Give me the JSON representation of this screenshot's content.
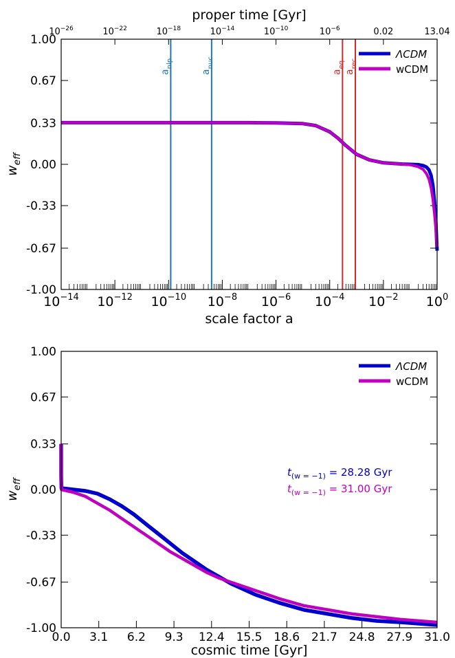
{
  "chart_data": [
    {
      "type": "line",
      "xlabel": "scale factor a",
      "ylabel": "w",
      "ylabel_sub": "eff",
      "x_scale": "log",
      "xlim": [
        1e-14,
        1
      ],
      "ylim": [
        -1.0,
        1.0
      ],
      "x_ticks": [
        {
          "base": "10",
          "exp": "−14"
        },
        {
          "base": "10",
          "exp": "−12"
        },
        {
          "base": "10",
          "exp": "−10"
        },
        {
          "base": "10",
          "exp": "−8"
        },
        {
          "base": "10",
          "exp": "−6"
        },
        {
          "base": "10",
          "exp": "−4"
        },
        {
          "base": "10",
          "exp": "−2"
        },
        {
          "base": "10",
          "exp": "0"
        }
      ],
      "y_ticks": [
        "1.00",
        "0.67",
        "0.33",
        "0.00",
        "-0.33",
        "-0.67",
        "-1.00"
      ],
      "y_tick_values": [
        1.0,
        0.67,
        0.33,
        0.0,
        -0.33,
        -0.67,
        -1.0
      ],
      "top_axis": {
        "label": "proper time [Gyr]",
        "ticks": [
          {
            "a": 1e-14,
            "base": "10",
            "exp": "−26"
          },
          {
            "a": 1e-12,
            "base": "10",
            "exp": "−22"
          },
          {
            "a": 1e-10,
            "base": "10",
            "exp": "−18"
          },
          {
            "a": 1e-08,
            "base": "10",
            "exp": "−14"
          },
          {
            "a": 1e-06,
            "base": "10",
            "exp": "−10"
          },
          {
            "a": 0.0001,
            "base": "10",
            "exp": "−6"
          },
          {
            "a": 0.01,
            "text": "0.02"
          },
          {
            "a": 1,
            "text": "13.04"
          }
        ]
      },
      "vertical_lines": [
        {
          "a": 1.2e-10,
          "label": "a",
          "sub": "nlp",
          "color": "#1f77b4"
        },
        {
          "a": 4e-09,
          "label": "a",
          "sub": "nuc",
          "color": "#1f77b4"
        },
        {
          "a": 0.0003,
          "label": "a",
          "sub": "eq",
          "color": "#d62728"
        },
        {
          "a": 0.0009,
          "label": "a",
          "sub": "rec",
          "color": "#d62728"
        }
      ],
      "series": [
        {
          "name": "ΛCDM",
          "color": "#0000cc",
          "x": [
            1e-14,
            1e-07,
            1e-06,
            1e-05,
            3e-05,
            0.0001,
            0.0002,
            0.0004,
            0.001,
            0.003,
            0.01,
            0.05,
            0.1,
            0.2,
            0.3,
            0.4,
            0.5,
            0.6,
            0.7,
            0.8,
            0.9,
            1.0
          ],
          "y": [
            0.333,
            0.333,
            0.331,
            0.325,
            0.31,
            0.26,
            0.21,
            0.15,
            0.08,
            0.035,
            0.012,
            0.002,
            0.0,
            -0.003,
            -0.01,
            -0.022,
            -0.045,
            -0.09,
            -0.17,
            -0.3,
            -0.47,
            -0.69
          ]
        },
        {
          "name": "wCDM",
          "color": "#c000c0",
          "x": [
            1e-14,
            1e-07,
            1e-06,
            1e-05,
            3e-05,
            0.0001,
            0.0002,
            0.0004,
            0.001,
            0.003,
            0.01,
            0.05,
            0.1,
            0.2,
            0.3,
            0.4,
            0.5,
            0.6,
            0.7,
            0.8,
            0.9,
            1.0
          ],
          "y": [
            0.333,
            0.333,
            0.331,
            0.325,
            0.31,
            0.26,
            0.21,
            0.15,
            0.08,
            0.035,
            0.012,
            0.001,
            -0.004,
            -0.02,
            -0.04,
            -0.075,
            -0.12,
            -0.19,
            -0.28,
            -0.4,
            -0.52,
            -0.66
          ]
        }
      ],
      "legend": "top-right"
    },
    {
      "type": "line",
      "xlabel": "cosmic time [Gyr]",
      "ylabel": "w",
      "ylabel_sub": "eff",
      "xlim": [
        0,
        31.0
      ],
      "ylim": [
        -1.0,
        1.0
      ],
      "x_ticks": [
        "0.0",
        "3.1",
        "6.2",
        "9.3",
        "12.4",
        "15.5",
        "18.6",
        "21.7",
        "24.8",
        "27.9",
        "31.0"
      ],
      "x_tick_values": [
        0,
        3.1,
        6.2,
        9.3,
        12.4,
        15.5,
        18.6,
        21.7,
        24.8,
        27.9,
        31.0
      ],
      "y_ticks": [
        "1.00",
        "0.67",
        "0.33",
        "0.00",
        "-0.33",
        "-0.67",
        "-1.00"
      ],
      "y_tick_values": [
        1.0,
        0.67,
        0.33,
        0.0,
        -0.33,
        -0.67,
        -1.0
      ],
      "series": [
        {
          "name": "ΛCDM",
          "color": "#0000cc",
          "x": [
            0,
            0.0,
            0.02,
            1,
            2,
            3,
            4,
            5,
            6,
            7,
            8,
            9,
            10,
            11,
            12,
            13,
            14,
            15,
            16,
            18,
            20,
            22,
            24,
            26,
            28,
            31
          ],
          "y": [
            0.33,
            0.1,
            0.01,
            0.0,
            -0.01,
            -0.03,
            -0.07,
            -0.12,
            -0.18,
            -0.25,
            -0.32,
            -0.39,
            -0.46,
            -0.52,
            -0.58,
            -0.63,
            -0.68,
            -0.72,
            -0.76,
            -0.82,
            -0.87,
            -0.9,
            -0.93,
            -0.95,
            -0.96,
            -0.98
          ]
        },
        {
          "name": "wCDM",
          "color": "#c000c0",
          "x": [
            0,
            0.0,
            0.02,
            1,
            2,
            3,
            4,
            5,
            6,
            7,
            8,
            9,
            10,
            11,
            12,
            13,
            14,
            15,
            16,
            18,
            20,
            22,
            24,
            26,
            28,
            31
          ],
          "y": [
            0.33,
            0.1,
            0.0,
            -0.02,
            -0.05,
            -0.1,
            -0.15,
            -0.21,
            -0.27,
            -0.33,
            -0.39,
            -0.45,
            -0.5,
            -0.55,
            -0.6,
            -0.64,
            -0.67,
            -0.7,
            -0.73,
            -0.79,
            -0.84,
            -0.87,
            -0.9,
            -0.92,
            -0.94,
            -0.96
          ]
        }
      ],
      "annotations": [
        {
          "t_label": "t",
          "sub": "(w = −1)",
          "text": " = 28.28 Gyr",
          "color": "#0000cc"
        },
        {
          "t_label": "t",
          "sub": "(w = −1)",
          "text": " = 31.00 Gyr",
          "color": "#c000c0"
        }
      ],
      "legend": "top-right"
    }
  ]
}
